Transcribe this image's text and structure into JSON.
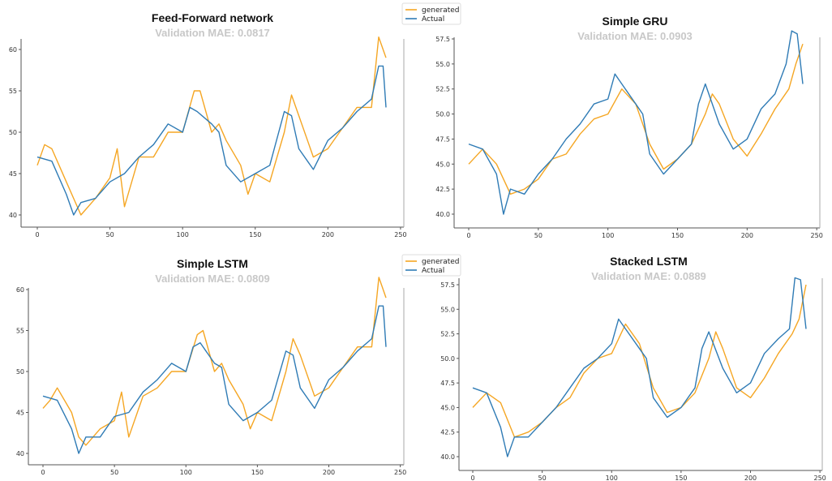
{
  "colors": {
    "generated": "#f5a623",
    "actual": "#2f7bb5",
    "axis": "#555555"
  },
  "charts": [
    {
      "title": "Feed-Forward network",
      "subtitle": "Validation MAE: 0.0817",
      "legend": [
        "generated",
        "Actual"
      ],
      "xticks": [
        "0",
        "50",
        "100",
        "150",
        "200",
        "250"
      ],
      "yticks": [
        "40",
        "45",
        "50",
        "55",
        "60"
      ]
    },
    {
      "title": "Simple GRU",
      "subtitle": "Validation MAE: 0.0903",
      "legend": [],
      "xticks": [
        "0",
        "50",
        "100",
        "150",
        "200",
        "250"
      ],
      "yticks": [
        "40.0",
        "42.5",
        "45.0",
        "47.5",
        "50.0",
        "52.5",
        "55.0",
        "57.5"
      ]
    },
    {
      "title": "Simple LSTM",
      "subtitle": "Validation MAE: 0.0809",
      "legend": [
        "generated",
        "Actual"
      ],
      "xticks": [
        "0",
        "50",
        "100",
        "150",
        "200",
        "250"
      ],
      "yticks": [
        "40",
        "45",
        "50",
        "55",
        "60"
      ]
    },
    {
      "title": "Stacked LSTM",
      "subtitle": "Validation MAE: 0.0889",
      "legend": [],
      "xticks": [
        "0",
        "50",
        "100",
        "150",
        "200",
        "250"
      ],
      "yticks": [
        "40.0",
        "42.5",
        "45.0",
        "47.5",
        "50.0",
        "52.5",
        "55.0",
        "57.5"
      ]
    }
  ],
  "chart_data": [
    {
      "type": "line",
      "title": "Feed-Forward network",
      "subtitle": "Validation MAE: 0.0817",
      "xlim": [
        0,
        250
      ],
      "ylim": [
        39.5,
        62
      ],
      "series": [
        {
          "name": "Actual",
          "points": [
            [
              0,
              47
            ],
            [
              10,
              46.5
            ],
            [
              20,
              42.5
            ],
            [
              25,
              40
            ],
            [
              30,
              41.5
            ],
            [
              40,
              42
            ],
            [
              50,
              44
            ],
            [
              60,
              45
            ],
            [
              70,
              47
            ],
            [
              80,
              48.5
            ],
            [
              90,
              51
            ],
            [
              100,
              50
            ],
            [
              105,
              53
            ],
            [
              110,
              52.5
            ],
            [
              120,
              51
            ],
            [
              125,
              50
            ],
            [
              130,
              46
            ],
            [
              140,
              44
            ],
            [
              150,
              45
            ],
            [
              160,
              46
            ],
            [
              170,
              52.5
            ],
            [
              175,
              52
            ],
            [
              180,
              48
            ],
            [
              190,
              45.5
            ],
            [
              200,
              49
            ],
            [
              210,
              50.5
            ],
            [
              220,
              52.5
            ],
            [
              230,
              54
            ],
            [
              235,
              58
            ],
            [
              238,
              58
            ],
            [
              240,
              53
            ]
          ]
        },
        {
          "name": "generated",
          "points": [
            [
              0,
              46
            ],
            [
              5,
              48.5
            ],
            [
              10,
              48
            ],
            [
              20,
              44
            ],
            [
              25,
              42
            ],
            [
              30,
              40
            ],
            [
              40,
              42
            ],
            [
              50,
              44.5
            ],
            [
              55,
              48
            ],
            [
              60,
              41
            ],
            [
              70,
              47
            ],
            [
              80,
              47
            ],
            [
              90,
              50
            ],
            [
              100,
              50
            ],
            [
              108,
              55
            ],
            [
              112,
              55
            ],
            [
              120,
              50
            ],
            [
              125,
              51
            ],
            [
              130,
              49
            ],
            [
              140,
              46
            ],
            [
              145,
              42.5
            ],
            [
              150,
              45
            ],
            [
              160,
              44
            ],
            [
              170,
              50
            ],
            [
              175,
              54.5
            ],
            [
              180,
              52
            ],
            [
              190,
              47
            ],
            [
              200,
              48
            ],
            [
              210,
              50.5
            ],
            [
              220,
              53
            ],
            [
              230,
              53
            ],
            [
              235,
              61.5
            ],
            [
              238,
              60
            ],
            [
              240,
              59
            ]
          ]
        }
      ]
    },
    {
      "type": "line",
      "title": "Simple GRU",
      "subtitle": "Validation MAE: 0.0903",
      "xlim": [
        0,
        250
      ],
      "ylim": [
        39.5,
        58.5
      ],
      "series": [
        {
          "name": "Actual",
          "points": [
            [
              0,
              47
            ],
            [
              10,
              46.5
            ],
            [
              20,
              44
            ],
            [
              25,
              40
            ],
            [
              30,
              42.5
            ],
            [
              40,
              42
            ],
            [
              50,
              44
            ],
            [
              60,
              45.5
            ],
            [
              70,
              47.5
            ],
            [
              80,
              49
            ],
            [
              90,
              51
            ],
            [
              100,
              51.5
            ],
            [
              105,
              54
            ],
            [
              110,
              53
            ],
            [
              120,
              51
            ],
            [
              125,
              50
            ],
            [
              130,
              46
            ],
            [
              140,
              44
            ],
            [
              150,
              45.5
            ],
            [
              160,
              47
            ],
            [
              165,
              51
            ],
            [
              170,
              53
            ],
            [
              180,
              49
            ],
            [
              190,
              46.5
            ],
            [
              200,
              47.5
            ],
            [
              210,
              50.5
            ],
            [
              220,
              52
            ],
            [
              228,
              55
            ],
            [
              232,
              58.3
            ],
            [
              236,
              58
            ],
            [
              240,
              53
            ]
          ]
        },
        {
          "name": "generated",
          "points": [
            [
              0,
              45
            ],
            [
              10,
              46.5
            ],
            [
              20,
              45
            ],
            [
              30,
              42
            ],
            [
              40,
              42.5
            ],
            [
              50,
              43.5
            ],
            [
              60,
              45.5
            ],
            [
              70,
              46
            ],
            [
              80,
              48
            ],
            [
              90,
              49.5
            ],
            [
              100,
              50
            ],
            [
              110,
              52.5
            ],
            [
              120,
              51
            ],
            [
              130,
              47
            ],
            [
              140,
              44.5
            ],
            [
              150,
              45.5
            ],
            [
              160,
              47
            ],
            [
              170,
              50
            ],
            [
              175,
              52
            ],
            [
              180,
              51
            ],
            [
              190,
              47.5
            ],
            [
              200,
              45.8
            ],
            [
              210,
              48
            ],
            [
              220,
              50.5
            ],
            [
              230,
              52.5
            ],
            [
              235,
              55
            ],
            [
              240,
              57
            ]
          ]
        }
      ]
    },
    {
      "type": "line",
      "title": "Simple LSTM",
      "subtitle": "Validation MAE: 0.0809",
      "xlim": [
        0,
        250
      ],
      "ylim": [
        39.5,
        62
      ],
      "series": [
        {
          "name": "Actual",
          "points": [
            [
              0,
              47
            ],
            [
              10,
              46.5
            ],
            [
              20,
              43
            ],
            [
              25,
              40
            ],
            [
              30,
              42
            ],
            [
              40,
              42
            ],
            [
              50,
              44.5
            ],
            [
              60,
              45
            ],
            [
              70,
              47.5
            ],
            [
              80,
              49
            ],
            [
              90,
              51
            ],
            [
              100,
              50
            ],
            [
              105,
              53
            ],
            [
              110,
              53.5
            ],
            [
              120,
              51
            ],
            [
              125,
              50.5
            ],
            [
              130,
              46
            ],
            [
              140,
              44
            ],
            [
              150,
              45
            ],
            [
              160,
              46.5
            ],
            [
              170,
              52.5
            ],
            [
              175,
              52
            ],
            [
              180,
              48
            ],
            [
              190,
              45.5
            ],
            [
              200,
              49
            ],
            [
              210,
              50.5
            ],
            [
              220,
              52.5
            ],
            [
              230,
              54
            ],
            [
              235,
              58
            ],
            [
              238,
              58
            ],
            [
              240,
              53
            ]
          ]
        },
        {
          "name": "generated",
          "points": [
            [
              0,
              45.5
            ],
            [
              5,
              46.5
            ],
            [
              10,
              48
            ],
            [
              20,
              45
            ],
            [
              25,
              42
            ],
            [
              30,
              41
            ],
            [
              40,
              43
            ],
            [
              50,
              44
            ],
            [
              55,
              47.5
            ],
            [
              60,
              42
            ],
            [
              70,
              47
            ],
            [
              80,
              48
            ],
            [
              90,
              50
            ],
            [
              100,
              50
            ],
            [
              108,
              54.5
            ],
            [
              112,
              55
            ],
            [
              120,
              50
            ],
            [
              125,
              51
            ],
            [
              130,
              49
            ],
            [
              140,
              46
            ],
            [
              145,
              43
            ],
            [
              150,
              45
            ],
            [
              160,
              44
            ],
            [
              170,
              50
            ],
            [
              175,
              54
            ],
            [
              180,
              52
            ],
            [
              190,
              47
            ],
            [
              200,
              48
            ],
            [
              210,
              50.5
            ],
            [
              220,
              53
            ],
            [
              230,
              53
            ],
            [
              235,
              61.5
            ],
            [
              238,
              60
            ],
            [
              240,
              59
            ]
          ]
        }
      ]
    },
    {
      "type": "line",
      "title": "Stacked LSTM",
      "subtitle": "Validation MAE: 0.0889",
      "xlim": [
        0,
        250
      ],
      "ylim": [
        39.5,
        58.5
      ],
      "series": [
        {
          "name": "Actual",
          "points": [
            [
              0,
              47
            ],
            [
              10,
              46.5
            ],
            [
              20,
              43
            ],
            [
              25,
              40
            ],
            [
              30,
              42
            ],
            [
              40,
              42
            ],
            [
              50,
              43.5
            ],
            [
              60,
              45
            ],
            [
              70,
              47
            ],
            [
              80,
              49
            ],
            [
              90,
              50
            ],
            [
              100,
              51.5
            ],
            [
              105,
              54
            ],
            [
              110,
              53
            ],
            [
              120,
              51
            ],
            [
              125,
              50
            ],
            [
              130,
              46
            ],
            [
              140,
              44
            ],
            [
              150,
              45
            ],
            [
              160,
              47
            ],
            [
              165,
              51
            ],
            [
              170,
              52.7
            ],
            [
              180,
              49
            ],
            [
              190,
              46.5
            ],
            [
              200,
              47.5
            ],
            [
              210,
              50.5
            ],
            [
              220,
              52
            ],
            [
              228,
              53
            ],
            [
              232,
              58.2
            ],
            [
              236,
              58
            ],
            [
              240,
              53
            ]
          ]
        },
        {
          "name": "generated",
          "points": [
            [
              0,
              45
            ],
            [
              10,
              46.5
            ],
            [
              20,
              45.5
            ],
            [
              30,
              42
            ],
            [
              40,
              42.5
            ],
            [
              50,
              43.5
            ],
            [
              60,
              45
            ],
            [
              70,
              46
            ],
            [
              80,
              48.5
            ],
            [
              90,
              50
            ],
            [
              100,
              50.5
            ],
            [
              110,
              53.5
            ],
            [
              120,
              51.5
            ],
            [
              130,
              47
            ],
            [
              140,
              44.5
            ],
            [
              150,
              45
            ],
            [
              160,
              46.5
            ],
            [
              170,
              50
            ],
            [
              175,
              52.7
            ],
            [
              180,
              51
            ],
            [
              190,
              47
            ],
            [
              200,
              46
            ],
            [
              210,
              48
            ],
            [
              220,
              50.5
            ],
            [
              230,
              52.5
            ],
            [
              235,
              54
            ],
            [
              240,
              57.5
            ]
          ]
        }
      ]
    }
  ]
}
